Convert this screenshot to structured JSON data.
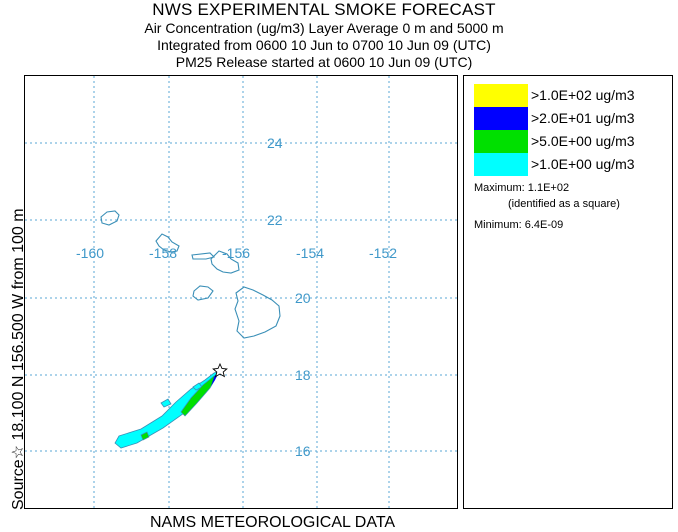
{
  "header": {
    "title": "NWS EXPERIMENTAL SMOKE FORECAST",
    "line1": "Air Concentration (ug/m3) Layer Average    0 m and  5000 m",
    "line2": "Integrated from 0600 10 Jun to 0700 10 Jun 09 (UTC)",
    "line3": "PM25 Release started at 0600 10 Jun 09 (UTC)"
  },
  "side_label": "Source☆ 18.100  N 156.500  W     from  100 m",
  "footer": "NAMS METEOROLOGICAL DATA",
  "map": {
    "lon_labels": [
      "-160",
      "-158",
      "-156",
      "-154",
      "-152"
    ],
    "lat_labels": [
      "24",
      "22",
      "20",
      "18",
      "16"
    ],
    "source_marker": "star-icon"
  },
  "legend": {
    "items": [
      {
        "label": ">1.0E+02 ug/m3",
        "color": "#ffff00"
      },
      {
        "label": ">2.0E+01 ug/m3",
        "color": "#0000ff"
      },
      {
        "label": ">5.0E+00 ug/m3",
        "color": "#00e000"
      },
      {
        "label": ">1.0E+00 ug/m3",
        "color": "#00ffff"
      }
    ],
    "maximum": "Maximum: 1.1E+02",
    "maximum_note": "(identified as a square)",
    "minimum": "Minimum: 6.4E-09"
  }
}
